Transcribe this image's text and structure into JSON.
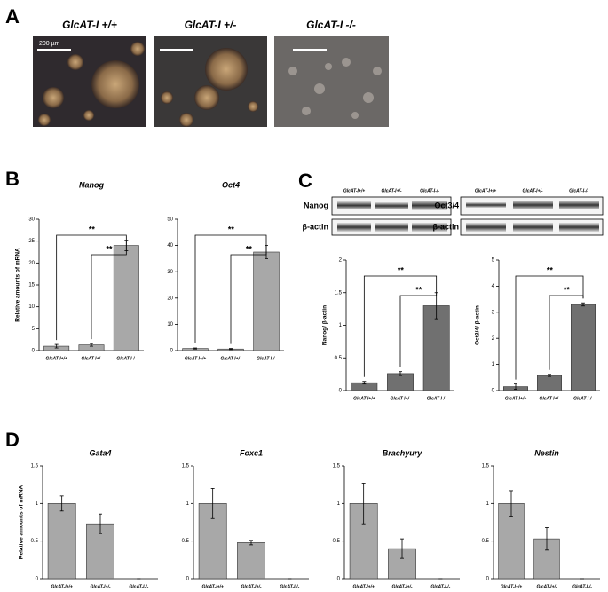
{
  "panels": [
    "A",
    "B",
    "C",
    "D"
  ],
  "panel_a": {
    "labels": [
      "GlcAT-I +/+",
      "GlcAT-I +/-",
      "GlcAT-I -/-"
    ],
    "scale_bar": "200 µm"
  },
  "blots": {
    "nanog": "Nanog",
    "oct": "Oct3/4",
    "actin": [
      "β-actin",
      "β-actin"
    ]
  },
  "chart_data": [
    {
      "type": "bar",
      "title": "Nanog",
      "ylabel": "Relative amounts of mRNA",
      "color": "#a8a8a8",
      "categories": [
        "GlcAT-I+/+",
        "GlcAT-I+/-",
        "GlcAT-I-/-"
      ],
      "values": [
        1,
        1.3,
        24
      ],
      "errors": [
        0.4,
        0.3,
        1.2
      ],
      "ylim": [
        0,
        30
      ],
      "yticks": [
        0,
        5,
        10,
        15,
        20,
        25,
        30
      ],
      "annotations": [
        "**",
        "**"
      ]
    },
    {
      "type": "bar",
      "title": "Oct4",
      "color": "#a8a8a8",
      "categories": [
        "GlcAT-I+/+",
        "GlcAT-I+/-",
        "GlcAT-I-/-"
      ],
      "values": [
        0.8,
        0.6,
        37.5
      ],
      "errors": [
        0.2,
        0.2,
        2.5
      ],
      "ylim": [
        0,
        50
      ],
      "yticks": [
        0,
        10,
        20,
        30,
        40,
        50
      ],
      "annotations": [
        "**",
        "**"
      ]
    },
    {
      "type": "bar",
      "ylabel": "Nanog/ β-actin",
      "color": "#707070",
      "categories": [
        "GlcAT-I+/+",
        "GlcAT-I+/-",
        "GlcAT-I-/-"
      ],
      "values": [
        0.12,
        0.26,
        1.3
      ],
      "errors": [
        0.02,
        0.03,
        0.2
      ],
      "ylim": [
        0,
        2
      ],
      "yticks": [
        0,
        0.5,
        1,
        1.5,
        2
      ],
      "annotations": [
        "**",
        "**"
      ]
    },
    {
      "type": "bar",
      "ylabel": "Oct3/4/ β-actin",
      "color": "#707070",
      "categories": [
        "GlcAT-I+/+",
        "GlcAT-I+/-",
        "GlcAT-I-/-"
      ],
      "values": [
        0.15,
        0.58,
        3.3
      ],
      "errors": [
        0.1,
        0.04,
        0.06
      ],
      "ylim": [
        0,
        5
      ],
      "yticks": [
        0,
        1,
        2,
        3,
        4,
        5
      ],
      "annotations": [
        "**",
        "**"
      ]
    },
    {
      "type": "bar",
      "title": "Gata4",
      "ylabel": "Relative amounts of mRNA",
      "color": "#a8a8a8",
      "categories": [
        "GlcAT-I+/+",
        "GlcAT-I+/-",
        "GlcAT-I-/-"
      ],
      "values": [
        1,
        0.73,
        0
      ],
      "errors": [
        0.1,
        0.13,
        0
      ],
      "ylim": [
        0,
        1.5
      ],
      "yticks": [
        0,
        0.5,
        1,
        1.5
      ]
    },
    {
      "type": "bar",
      "title": "Foxc1",
      "color": "#a8a8a8",
      "categories": [
        "GlcAT-I+/+",
        "GlcAT-I+/-",
        "GlcAT-I-/-"
      ],
      "values": [
        1,
        0.48,
        0
      ],
      "errors": [
        0.2,
        0.03,
        0
      ],
      "ylim": [
        0,
        1.5
      ],
      "yticks": [
        0,
        0.5,
        1,
        1.5
      ]
    },
    {
      "type": "bar",
      "title": "Brachyury",
      "color": "#a8a8a8",
      "categories": [
        "GlcAT-I+/+",
        "GlcAT-I+/-",
        "GlcAT-I-/-"
      ],
      "values": [
        1,
        0.4,
        0
      ],
      "errors": [
        0.27,
        0.13,
        0
      ],
      "ylim": [
        0,
        1.5
      ],
      "yticks": [
        0,
        0.5,
        1,
        1.5
      ]
    },
    {
      "type": "bar",
      "title": "Nestin",
      "color": "#a8a8a8",
      "categories": [
        "GlcAT-I+/+",
        "GlcAT-I+/-",
        "GlcAT-I-/-"
      ],
      "values": [
        1,
        0.53,
        0
      ],
      "errors": [
        0.17,
        0.15,
        0
      ],
      "ylim": [
        0,
        1.5
      ],
      "yticks": [
        0,
        0.5,
        1,
        1.5
      ]
    }
  ]
}
